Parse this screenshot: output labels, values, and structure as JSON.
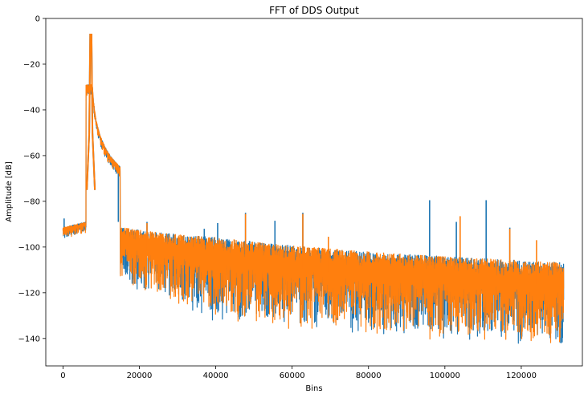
{
  "chart_data": {
    "type": "line",
    "title": "FFT of DDS Output",
    "xlabel": "Bins",
    "ylabel": "Amplitude [dB]",
    "xlim": [
      -4500,
      136000
    ],
    "ylim": [
      -152,
      0
    ],
    "grid": false,
    "legend": "none",
    "x_ticks": [
      0,
      20000,
      40000,
      60000,
      80000,
      100000,
      120000
    ],
    "x_tick_labels": [
      "0",
      "20000",
      "40000",
      "60000",
      "80000",
      "100000",
      "120000"
    ],
    "y_ticks": [
      0,
      -20,
      -40,
      -60,
      -80,
      -100,
      -120,
      -140
    ],
    "y_tick_labels": [
      "0",
      "−20",
      "−40",
      "−60",
      "−80",
      "−100",
      "−120",
      "−140"
    ],
    "x_max": 131072,
    "series": [
      {
        "color": "#1f77b4",
        "peak": {
          "x": 7300,
          "y": -7
        },
        "spurs": [
          {
            "x": 300,
            "y": -87.5
          },
          {
            "x": 14500,
            "y": -89
          },
          {
            "x": 22000,
            "y": -89
          },
          {
            "x": 37000,
            "y": -92
          },
          {
            "x": 40500,
            "y": -89.5
          },
          {
            "x": 47800,
            "y": -85
          },
          {
            "x": 55500,
            "y": -88.5
          },
          {
            "x": 62800,
            "y": -85
          },
          {
            "x": 96000,
            "y": -79.5
          },
          {
            "x": 110800,
            "y": -79.5
          },
          {
            "x": 103000,
            "y": -89
          },
          {
            "x": 117000,
            "y": -91.5
          }
        ]
      },
      {
        "color": "#ff7f0e",
        "peak": {
          "x": 7300,
          "y": -7
        },
        "spurs": [
          {
            "x": 22000,
            "y": -89.5
          },
          {
            "x": 47800,
            "y": -85.5
          },
          {
            "x": 62800,
            "y": -85.5
          },
          {
            "x": 69500,
            "y": -95.5
          },
          {
            "x": 104000,
            "y": -86.5
          },
          {
            "x": 117000,
            "y": -92
          },
          {
            "x": 124000,
            "y": -97
          }
        ]
      }
    ]
  }
}
